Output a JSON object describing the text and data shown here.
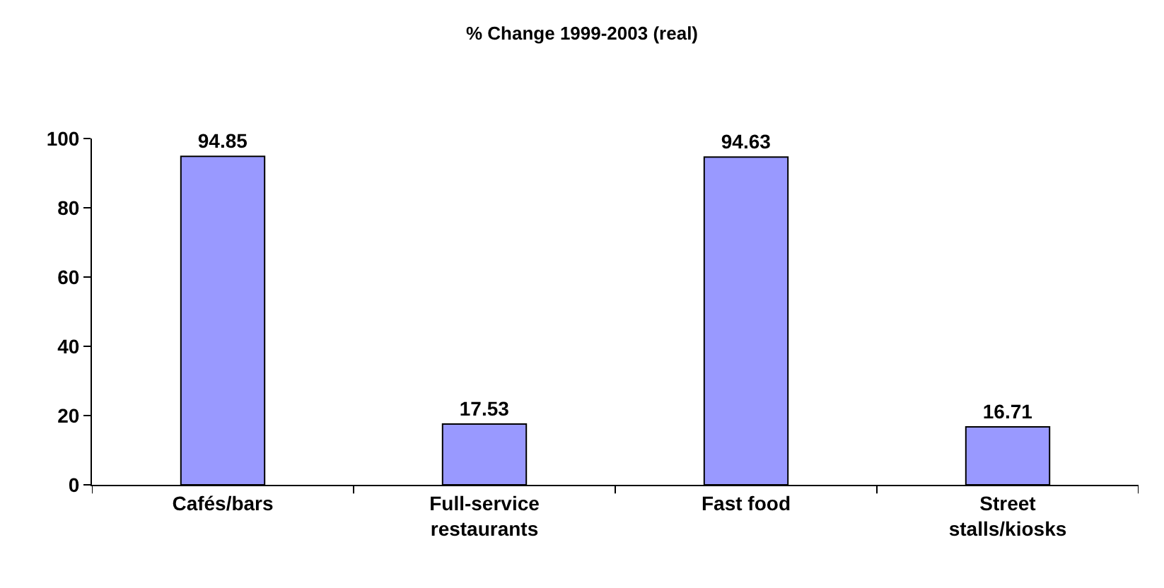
{
  "chart_data": {
    "type": "bar",
    "title": "% Change 1999-2003 (real)",
    "categories": [
      "Cafés/bars",
      "Full-service restaurants",
      "Fast food",
      "Street stalls/kiosks"
    ],
    "values": [
      94.85,
      17.53,
      94.63,
      16.71
    ],
    "color": "#9999ff",
    "ylim": [
      0,
      100
    ],
    "yticks": [
      0,
      20,
      40,
      60,
      80,
      100
    ],
    "data_labels": true
  }
}
